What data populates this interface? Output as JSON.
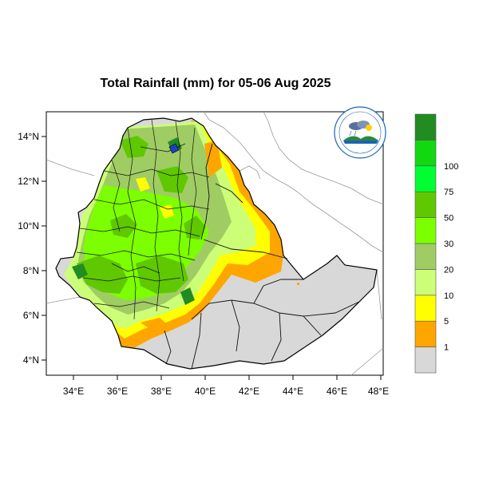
{
  "title": "Total Rainfall (mm) for 05-06 Aug 2025",
  "x_ticks": [
    "34°E",
    "36°E",
    "38°E",
    "40°E",
    "42°E",
    "44°E",
    "46°E",
    "48°E"
  ],
  "y_ticks": [
    "14°N",
    "12°N",
    "10°N",
    "8°N",
    "6°N",
    "4°N"
  ],
  "colorbar": {
    "colors": [
      "#d8d8d8",
      "#ffa500",
      "#ffff00",
      "#ccff77",
      "#a0cc64",
      "#7cff00",
      "#5fc800",
      "#00ff32",
      "#11d811",
      "#228b22"
    ],
    "labels": [
      "1",
      "5",
      "10",
      "20",
      "30",
      "50",
      "75",
      "100"
    ]
  },
  "colors": {
    "no_rain": "#d8d8d8",
    "orange": "#ffa500",
    "yellow": "#ffff00",
    "light_green": "#ccff77",
    "sage": "#a0cc64",
    "green": "#7cff00",
    "mid_green": "#5fc800",
    "dark_green": "#228b22"
  },
  "logo": "ethiopian-meteorology-institute-logo"
}
